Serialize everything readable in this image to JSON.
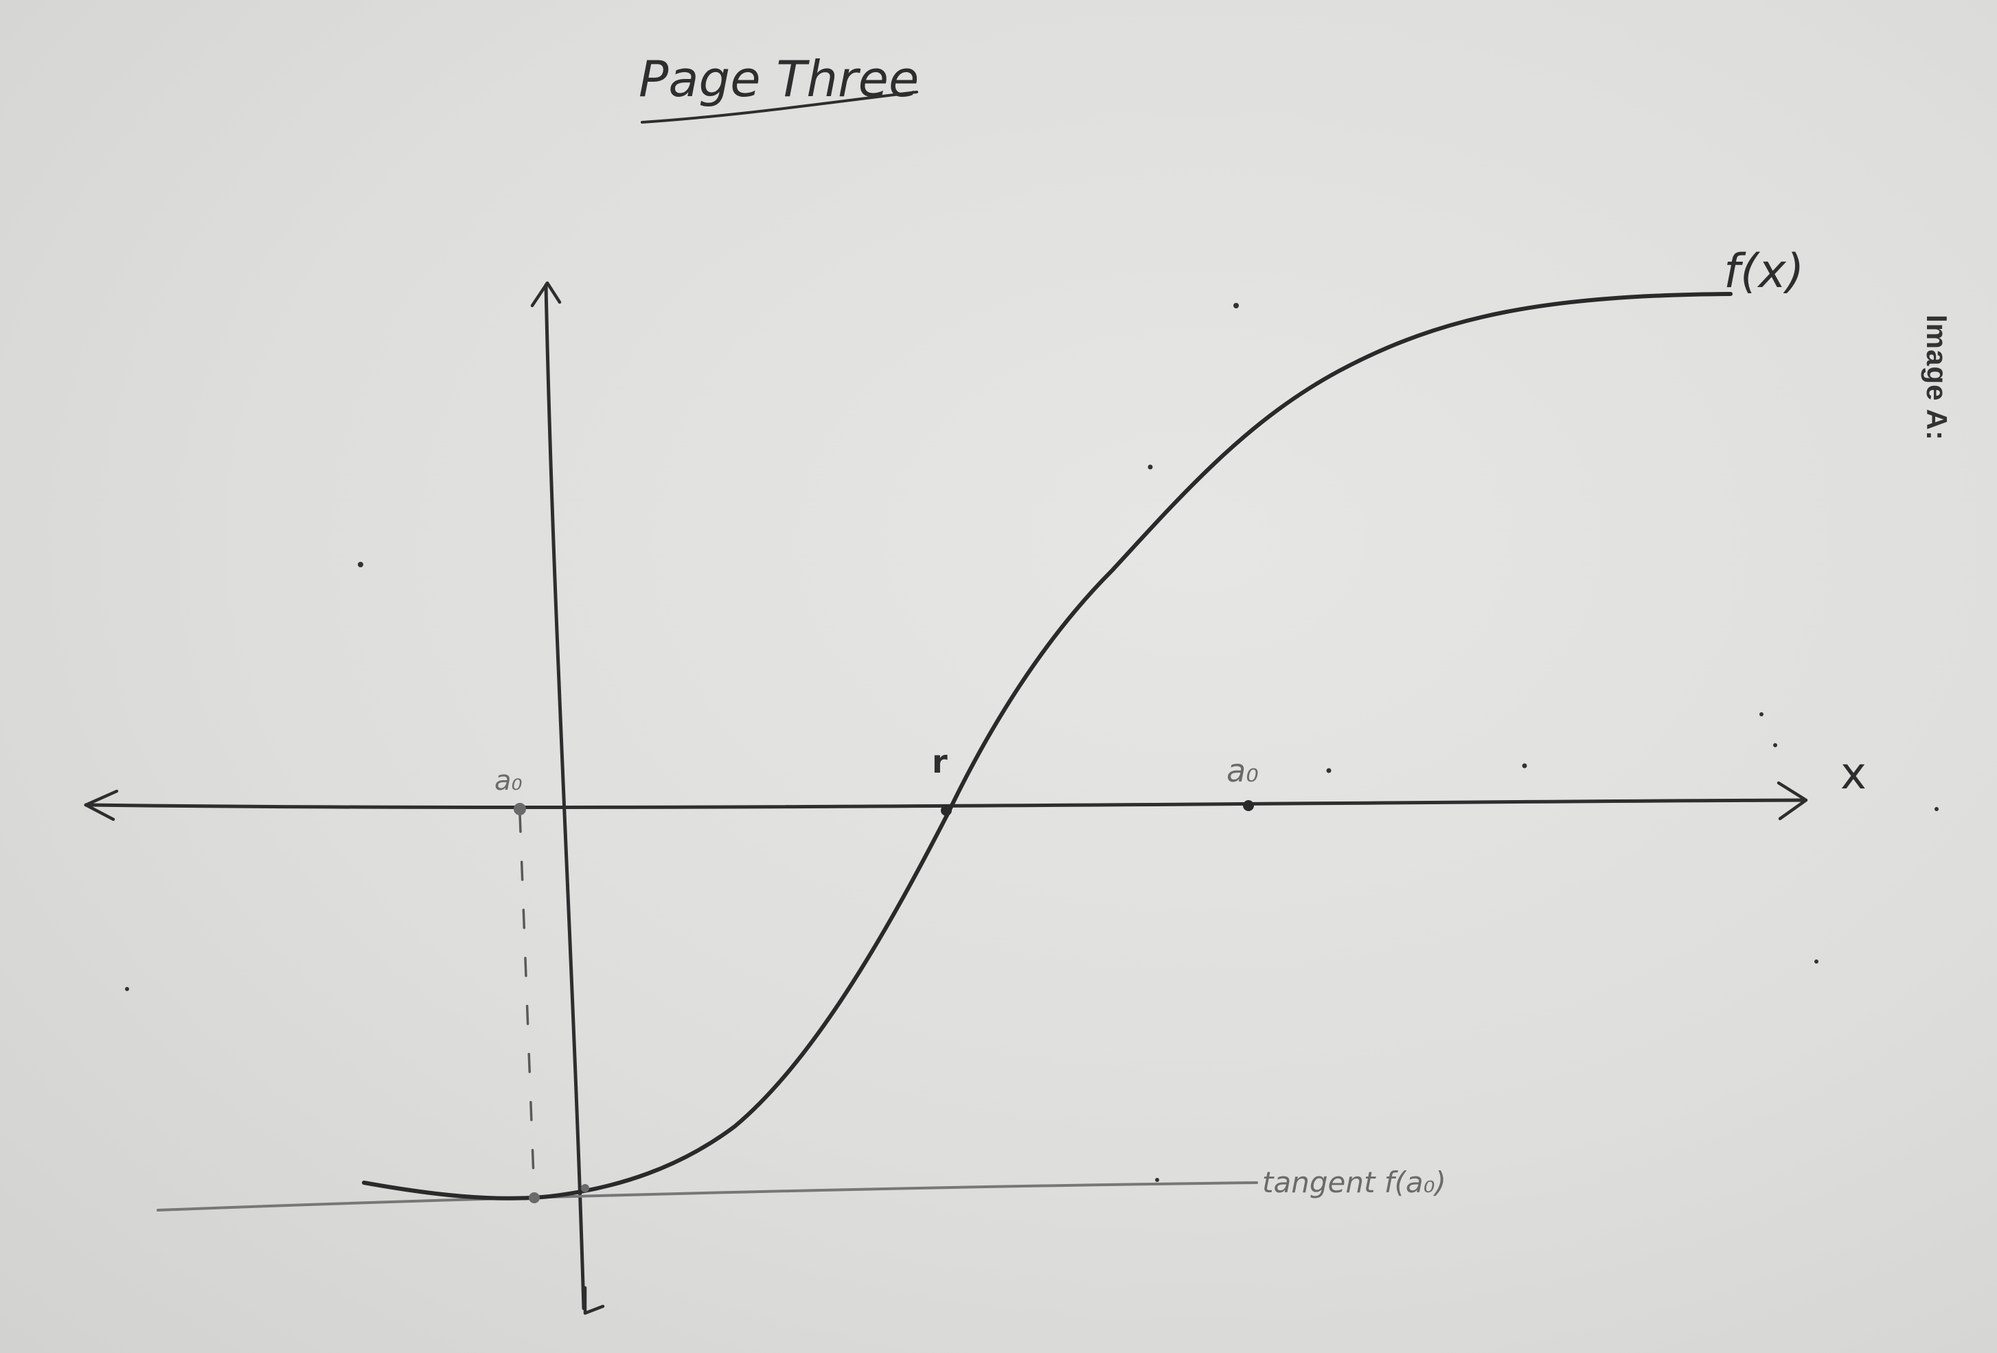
{
  "page": {
    "title": "Page Three",
    "side_label": "Image A:"
  },
  "graph": {
    "function_label": "f(x)",
    "x_axis_label": "x",
    "root_label": "r",
    "left_point_label": "a₀",
    "right_point_label": "a₀",
    "tangent_label": "tangent f(a₀)"
  },
  "colors": {
    "ink": "#2e2e2e",
    "pencil": "#6b6b6b",
    "paper": "#e2e2e0"
  }
}
